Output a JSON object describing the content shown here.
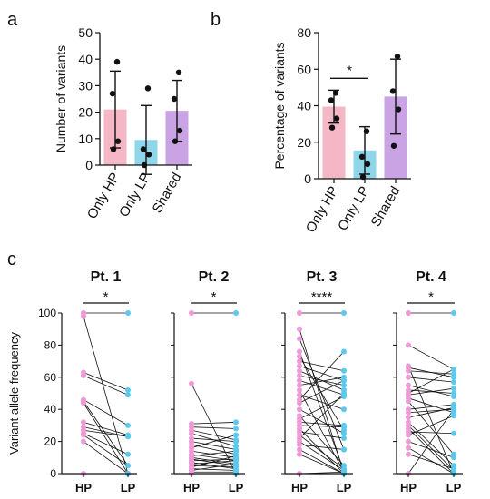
{
  "panel_letters": [
    "a",
    "b",
    "c"
  ],
  "chart_data": [
    {
      "panel": "a",
      "type": "bar",
      "ylabel": "Number of variants",
      "ylim": [
        0,
        50
      ],
      "yticks": [
        0,
        10,
        20,
        30,
        40,
        50
      ],
      "categories": [
        "Only HP",
        "Only LP",
        "Shared"
      ],
      "means": [
        21,
        9.5,
        20.5
      ],
      "sd": [
        14.5,
        13,
        11.5
      ],
      "points": [
        [
          39,
          27,
          9,
          6
        ],
        [
          29,
          6,
          4,
          0
        ],
        [
          35,
          25,
          13,
          9
        ]
      ],
      "colors": [
        "#f5b6c5",
        "#8fd6ea",
        "#c9a3e3"
      ],
      "grid": false
    },
    {
      "panel": "b",
      "type": "bar",
      "ylabel": "Percentage of variants",
      "ylim": [
        0,
        80
      ],
      "yticks": [
        0,
        20,
        40,
        60,
        80
      ],
      "categories": [
        "Only HP",
        "Only LP",
        "Shared"
      ],
      "means": [
        39.5,
        15.5,
        45
      ],
      "sd": [
        9,
        13,
        20.5
      ],
      "points": [
        [
          47,
          43,
          33,
          28
        ],
        [
          26,
          12,
          8,
          1
        ],
        [
          67,
          48,
          38,
          18
        ]
      ],
      "colors": [
        "#f5b6c5",
        "#8fd6ea",
        "#c9a3e3"
      ],
      "annotations": [
        {
          "between": [
            0,
            1
          ],
          "label": "*",
          "y": 55
        }
      ],
      "grid": false
    },
    {
      "panel": "c",
      "type": "line",
      "ylabel": "Variant allele frequency",
      "ylim": [
        0,
        100
      ],
      "yticks": [
        0,
        20,
        40,
        60,
        80,
        100
      ],
      "x": [
        "HP",
        "LP"
      ],
      "colors": {
        "HP": "#ef9ad6",
        "LP": "#5cc9ec"
      },
      "grid": false,
      "subplots": [
        {
          "title": "Pt. 1",
          "significance": "*",
          "pairs": [
            [
              100,
              100
            ],
            [
              98,
              0
            ],
            [
              63,
              52
            ],
            [
              61,
              49
            ],
            [
              46,
              30
            ],
            [
              45,
              5
            ],
            [
              44,
              0
            ],
            [
              32,
              24
            ],
            [
              29,
              23
            ],
            [
              27,
              23
            ],
            [
              25,
              12
            ],
            [
              24,
              5
            ],
            [
              20,
              0
            ],
            [
              0,
              0
            ]
          ]
        },
        {
          "title": "Pt. 2",
          "significance": "*",
          "pairs": [
            [
              100,
              100
            ],
            [
              56,
              0
            ],
            [
              31,
              32
            ],
            [
              29,
              28
            ],
            [
              27,
              21
            ],
            [
              25,
              17
            ],
            [
              22,
              20
            ],
            [
              20,
              15
            ],
            [
              18,
              12
            ],
            [
              16,
              24
            ],
            [
              14,
              10
            ],
            [
              12,
              8
            ],
            [
              11,
              14
            ],
            [
              10,
              6
            ],
            [
              9,
              5
            ],
            [
              8,
              9
            ],
            [
              7,
              3
            ],
            [
              6,
              8
            ],
            [
              5,
              4
            ],
            [
              4,
              11
            ],
            [
              3,
              2
            ],
            [
              2,
              6
            ],
            [
              1,
              1
            ],
            [
              0,
              0
            ]
          ]
        },
        {
          "title": "Pt. 3",
          "significance": "****",
          "pairs": [
            [
              100,
              100
            ],
            [
              90,
              0
            ],
            [
              84,
              15
            ],
            [
              76,
              2
            ],
            [
              73,
              27
            ],
            [
              70,
              64
            ],
            [
              67,
              58
            ],
            [
              64,
              52
            ],
            [
              61,
              55
            ],
            [
              58,
              49
            ],
            [
              55,
              60
            ],
            [
              52,
              1
            ],
            [
              49,
              40
            ],
            [
              46,
              76
            ],
            [
              44,
              58
            ],
            [
              40,
              25
            ],
            [
              36,
              5
            ],
            [
              34,
              48
            ],
            [
              32,
              30
            ],
            [
              30,
              29
            ],
            [
              28,
              0
            ],
            [
              26,
              22
            ],
            [
              24,
              3
            ],
            [
              22,
              50
            ],
            [
              20,
              2
            ],
            [
              18,
              15
            ],
            [
              15,
              0
            ],
            [
              12,
              0
            ],
            [
              0,
              1
            ]
          ]
        },
        {
          "title": "Pt. 4",
          "significance": "*",
          "pairs": [
            [
              100,
              100
            ],
            [
              80,
              65
            ],
            [
              67,
              0
            ],
            [
              66,
              60
            ],
            [
              64,
              62
            ],
            [
              60,
              57
            ],
            [
              55,
              48
            ],
            [
              52,
              50
            ],
            [
              50,
              65
            ],
            [
              49,
              53
            ],
            [
              47,
              38
            ],
            [
              45,
              12
            ],
            [
              40,
              43
            ],
            [
              38,
              40
            ],
            [
              35,
              41
            ],
            [
              32,
              5
            ],
            [
              30,
              2
            ],
            [
              28,
              0
            ],
            [
              26,
              25
            ],
            [
              24,
              36
            ],
            [
              20,
              10
            ],
            [
              16,
              0
            ],
            [
              12,
              3
            ],
            [
              0,
              40
            ]
          ]
        }
      ]
    }
  ]
}
